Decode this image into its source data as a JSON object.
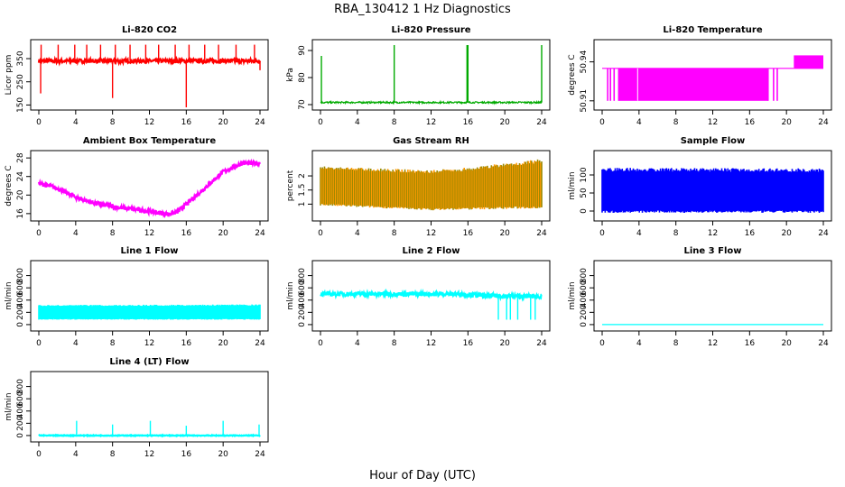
{
  "figure": {
    "title": "RBA_130412  1 Hz Diagnostics",
    "xlabel": "Hour of Day (UTC)"
  },
  "chart_data": [
    {
      "id": "co2",
      "type": "line",
      "title": "Li-820 CO2",
      "ylabel": "Licor ppm",
      "color": "#ff0000",
      "xlim": [
        0,
        24
      ],
      "xticks": [
        0,
        4,
        8,
        12,
        16,
        20,
        24
      ],
      "ylim": [
        140,
        420
      ],
      "yticks": [
        150,
        250,
        350
      ],
      "baseline": 340,
      "noise": 8,
      "spikes": [
        [
          0.2,
          200
        ],
        [
          0.25,
          410
        ],
        [
          2.1,
          410
        ],
        [
          3.9,
          410
        ],
        [
          5.2,
          410
        ],
        [
          6.7,
          410
        ],
        [
          8.0,
          180
        ],
        [
          8.3,
          410
        ],
        [
          9.9,
          410
        ],
        [
          11.6,
          410
        ],
        [
          13.0,
          410
        ],
        [
          14.8,
          410
        ],
        [
          16.0,
          140
        ],
        [
          16.3,
          410
        ],
        [
          18.0,
          410
        ],
        [
          19.5,
          410
        ],
        [
          21.4,
          410
        ],
        [
          23.4,
          410
        ],
        [
          24.0,
          300
        ]
      ]
    },
    {
      "id": "pressure",
      "type": "line",
      "title": "Li-820 Pressure",
      "ylabel": "kPa",
      "color": "#00aa00",
      "xlim": [
        0,
        24
      ],
      "xticks": [
        0,
        4,
        8,
        12,
        16,
        20,
        24
      ],
      "ylim": [
        69,
        93
      ],
      "yticks": [
        70,
        80,
        90
      ],
      "baseline": 70.8,
      "noise": 0.3,
      "spikes": [
        [
          0.1,
          88
        ],
        [
          8.0,
          92
        ],
        [
          15.9,
          92
        ],
        [
          16.0,
          92
        ],
        [
          24.0,
          92
        ]
      ]
    },
    {
      "id": "temperature",
      "type": "step",
      "title": "Li-820 Temperature",
      "ylabel": "degrees C",
      "color": "#ff00ff",
      "xlim": [
        0,
        24
      ],
      "xticks": [
        0,
        4,
        8,
        12,
        16,
        20,
        24
      ],
      "ylim": [
        50.905,
        50.955
      ],
      "yticks": [
        50.91,
        50.94
      ],
      "levels": [
        50.91,
        50.935,
        50.945
      ],
      "segments": [
        [
          0,
          20.8,
          50.935
        ],
        [
          20.8,
          24,
          50.945
        ]
      ],
      "drops": [
        0.6,
        0.9,
        1.3,
        1.8,
        3.8,
        18.0,
        18.6,
        19.0
      ]
    },
    {
      "id": "ambient",
      "type": "line",
      "title": "Ambient Box Temperature",
      "ylabel": "degrees C",
      "color": "#ff00ff",
      "xlim": [
        0,
        24
      ],
      "xticks": [
        0,
        4,
        8,
        12,
        16,
        20,
        24
      ],
      "ylim": [
        15,
        29
      ],
      "yticks": [
        16,
        20,
        24,
        28
      ],
      "curve": [
        [
          0,
          22.5
        ],
        [
          2,
          21.5
        ],
        [
          4,
          19.5
        ],
        [
          6,
          18.3
        ],
        [
          8,
          17.5
        ],
        [
          10,
          17.0
        ],
        [
          12,
          16.5
        ],
        [
          14,
          15.9
        ],
        [
          15,
          16.3
        ],
        [
          16,
          18
        ],
        [
          18,
          21.5
        ],
        [
          20,
          25
        ],
        [
          22,
          26.8
        ],
        [
          24,
          26.9
        ]
      ],
      "noise": 0.45
    },
    {
      "id": "rh",
      "type": "band",
      "title": "Gas Stream RH",
      "ylabel": "percent",
      "color": "#ff9900",
      "color2": "#998800",
      "xlim": [
        0,
        24
      ],
      "xticks": [
        0,
        4,
        8,
        12,
        16,
        20,
        24
      ],
      "ylim": [
        0.5,
        2.8
      ],
      "yticks": [
        1.0,
        1.5,
        2.0
      ],
      "lower": [
        [
          0,
          0.95
        ],
        [
          12,
          0.78
        ],
        [
          24,
          0.85
        ]
      ],
      "upper": [
        [
          0,
          2.35
        ],
        [
          12,
          2.2
        ],
        [
          16,
          2.3
        ],
        [
          24,
          2.6
        ]
      ]
    },
    {
      "id": "sample",
      "type": "band",
      "title": "Sample Flow",
      "ylabel": "ml/min",
      "color": "#0000ff",
      "color2": "#0000ff",
      "xlim": [
        0,
        24
      ],
      "xticks": [
        0,
        4,
        8,
        12,
        16,
        20,
        24
      ],
      "ylim": [
        -20,
        160
      ],
      "yticks": [
        0,
        50,
        100
      ],
      "lower": [
        [
          0,
          -5
        ],
        [
          24,
          -5
        ]
      ],
      "upper": [
        [
          0,
          120
        ],
        [
          24,
          118
        ]
      ]
    },
    {
      "id": "line1",
      "type": "band",
      "title": "Line 1 Flow",
      "ylabel": "ml/min",
      "color": "#00ffff",
      "color2": "#00ffff",
      "xlim": [
        0,
        24
      ],
      "xticks": [
        0,
        4,
        8,
        12,
        16,
        20,
        24
      ],
      "ylim": [
        -60,
        1000
      ],
      "yticks": [
        0,
        200,
        400,
        600,
        800
      ],
      "lower": [
        [
          0,
          80
        ],
        [
          24,
          80
        ]
      ],
      "upper": [
        [
          0,
          320
        ],
        [
          24,
          330
        ]
      ]
    },
    {
      "id": "line2",
      "type": "line",
      "title": "Line 2 Flow",
      "ylabel": "ml/min",
      "color": "#00ffff",
      "xlim": [
        0,
        24
      ],
      "xticks": [
        0,
        4,
        8,
        12,
        16,
        20,
        24
      ],
      "ylim": [
        -60,
        1000
      ],
      "yticks": [
        0,
        200,
        400,
        600,
        800
      ],
      "curve": [
        [
          0,
          500
        ],
        [
          8,
          500
        ],
        [
          15,
          500
        ],
        [
          18,
          470
        ],
        [
          24,
          460
        ]
      ],
      "noise": 35,
      "spikes": [
        [
          19.3,
          80
        ],
        [
          20.2,
          80
        ],
        [
          20.6,
          80
        ],
        [
          21.4,
          80
        ],
        [
          22.8,
          80
        ],
        [
          23.3,
          80
        ]
      ]
    },
    {
      "id": "line3",
      "type": "line",
      "title": "Line 3 Flow",
      "ylabel": "ml/min",
      "color": "#00ffff",
      "xlim": [
        0,
        24
      ],
      "xticks": [
        0,
        4,
        8,
        12,
        16,
        20,
        24
      ],
      "ylim": [
        -60,
        1000
      ],
      "yticks": [
        0,
        200,
        400,
        600,
        800
      ],
      "curve": [
        [
          0,
          0
        ],
        [
          24,
          0
        ]
      ],
      "noise": 0
    },
    {
      "id": "line4",
      "type": "line",
      "title": "Line 4 (LT) Flow",
      "ylabel": "ml/min",
      "color": "#00ffff",
      "xlim": [
        0,
        24
      ],
      "xticks": [
        0,
        4,
        8,
        12,
        16,
        20,
        24
      ],
      "ylim": [
        -60,
        1000
      ],
      "yticks": [
        0,
        200,
        400,
        600,
        800
      ],
      "curve": [
        [
          0,
          0
        ],
        [
          24,
          0
        ]
      ],
      "noise": 6,
      "spikes": [
        [
          4.1,
          240
        ],
        [
          8.0,
          180
        ],
        [
          12.1,
          240
        ],
        [
          16.0,
          160
        ],
        [
          20.0,
          240
        ],
        [
          23.9,
          180
        ]
      ]
    }
  ]
}
